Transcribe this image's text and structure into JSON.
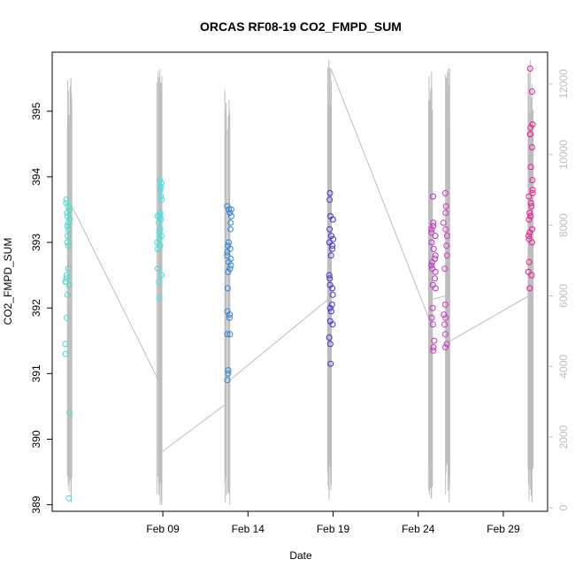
{
  "chart_data": {
    "type": "scatter",
    "title": "ORCAS RF08-19 CO2_FMPD_SUM",
    "xlabel": "Date",
    "ylabel": "CO2_FMPD_SUM",
    "x_ticks": [
      {
        "label": "Feb 09",
        "day": 9
      },
      {
        "label": "Feb 14",
        "day": 14
      },
      {
        "label": "Feb 19",
        "day": 19
      },
      {
        "label": "Feb 24",
        "day": 24
      },
      {
        "label": "Feb 29",
        "day": 29
      }
    ],
    "xlim_days": [
      2.5,
      31.6
    ],
    "ylim": [
      388.9,
      395.9
    ],
    "y_ticks": [
      389,
      390,
      391,
      392,
      393,
      394,
      395
    ],
    "y2lim": [
      -100,
      12900
    ],
    "y2_ticks": [
      0,
      2000,
      4000,
      6000,
      8000,
      10000,
      12000
    ],
    "grid": false,
    "secondary_series": {
      "name": "",
      "color": "#bdbdbd",
      "spike_groups": [
        {
          "day": 3.5,
          "low": 2,
          "high": 12500
        },
        {
          "day": 8.8,
          "low": 50,
          "high": 12600
        },
        {
          "day": 12.8,
          "low": 50,
          "high": 12300
        },
        {
          "day": 18.8,
          "low": 50,
          "high": 12700
        },
        {
          "day": 24.7,
          "low": 100,
          "high": 12400
        },
        {
          "day": 25.7,
          "low": 100,
          "high": 12500
        },
        {
          "day": 30.6,
          "low": 100,
          "high": 12800
        }
      ],
      "connectors": [
        {
          "from_day": 3.7,
          "from": 8500,
          "to_day": 8.75,
          "to": 3600
        },
        {
          "from_day": 8.85,
          "from": 1550,
          "to_day": 12.6,
          "to": 2900
        },
        {
          "from_day": 12.9,
          "from": 3600,
          "to_day": 18.7,
          "to": 5900
        },
        {
          "from_day": 18.9,
          "from": 12400,
          "to_day": 24.6,
          "to": 5400
        },
        {
          "from_day": 24.8,
          "from": 5900,
          "to_day": 25.6,
          "to": 6000
        },
        {
          "from_day": 25.8,
          "from": 4700,
          "to_day": 30.5,
          "to": 6000
        }
      ]
    },
    "flights": [
      {
        "center_day": 3.4,
        "color": "#40e0d0",
        "values": [
          393.65,
          393.6,
          393.55,
          393.5,
          393.45,
          393.4,
          393.35,
          393.3,
          393.25,
          393.2,
          393.1,
          393.0,
          392.95,
          392.6,
          392.5,
          392.45,
          392.4,
          392.4,
          392.35,
          392.2,
          391.85,
          391.45,
          391.3,
          390.4,
          389.1
        ]
      },
      {
        "center_day": 8.8,
        "color": "#3ae6e6",
        "values": [
          393.95,
          393.9,
          393.85,
          393.8,
          393.7,
          393.65,
          393.45,
          393.4,
          393.4,
          393.35,
          393.3,
          393.2,
          393.15,
          393.1,
          393.05,
          393.0,
          392.95,
          392.9,
          392.6,
          392.5,
          392.4,
          392.15
        ]
      },
      {
        "center_day": 12.9,
        "color": "#2b82e0",
        "values": [
          393.55,
          393.5,
          393.5,
          393.45,
          393.4,
          393.3,
          393.2,
          393.0,
          392.95,
          392.9,
          392.85,
          392.8,
          392.75,
          392.7,
          392.65,
          392.6,
          392.55,
          392.3,
          391.95,
          391.9,
          391.85,
          391.6,
          391.6,
          391.05,
          391.0,
          390.9
        ]
      },
      {
        "center_day": 18.9,
        "color": "#4a2ad8",
        "values": [
          393.75,
          393.65,
          393.4,
          393.35,
          393.2,
          393.1,
          393.05,
          393.0,
          392.95,
          392.9,
          392.8,
          392.5,
          392.45,
          392.35,
          392.3,
          392.2,
          392.05,
          392.0,
          391.95,
          391.8,
          391.75,
          391.55,
          391.45,
          391.15
        ]
      },
      {
        "center_day": 24.9,
        "color": "#c42cc8",
        "values": [
          393.7,
          393.3,
          393.25,
          393.2,
          393.15,
          393.1,
          393.0,
          392.9,
          392.8,
          392.75,
          392.7,
          392.65,
          392.6,
          392.55,
          392.45,
          392.35,
          392.3,
          392.0,
          391.85,
          391.75,
          391.5,
          391.4,
          391.35
        ]
      },
      {
        "center_day": 25.6,
        "color": "#d533c2",
        "values": [
          393.75,
          393.55,
          393.45,
          393.3,
          393.2,
          393.1,
          392.95,
          392.8,
          392.6,
          392.05,
          391.9,
          391.85,
          391.75,
          391.6,
          391.45,
          391.4
        ]
      },
      {
        "center_day": 30.6,
        "color": "#ee1a96",
        "values": [
          395.65,
          395.3,
          394.8,
          394.75,
          394.65,
          394.65,
          394.45,
          394.15,
          393.95,
          393.8,
          393.75,
          393.7,
          393.6,
          393.55,
          393.45,
          393.4,
          393.35,
          393.2,
          393.15,
          393.1,
          393.05,
          393.0,
          392.7,
          392.55,
          392.5,
          392.3
        ]
      }
    ]
  }
}
